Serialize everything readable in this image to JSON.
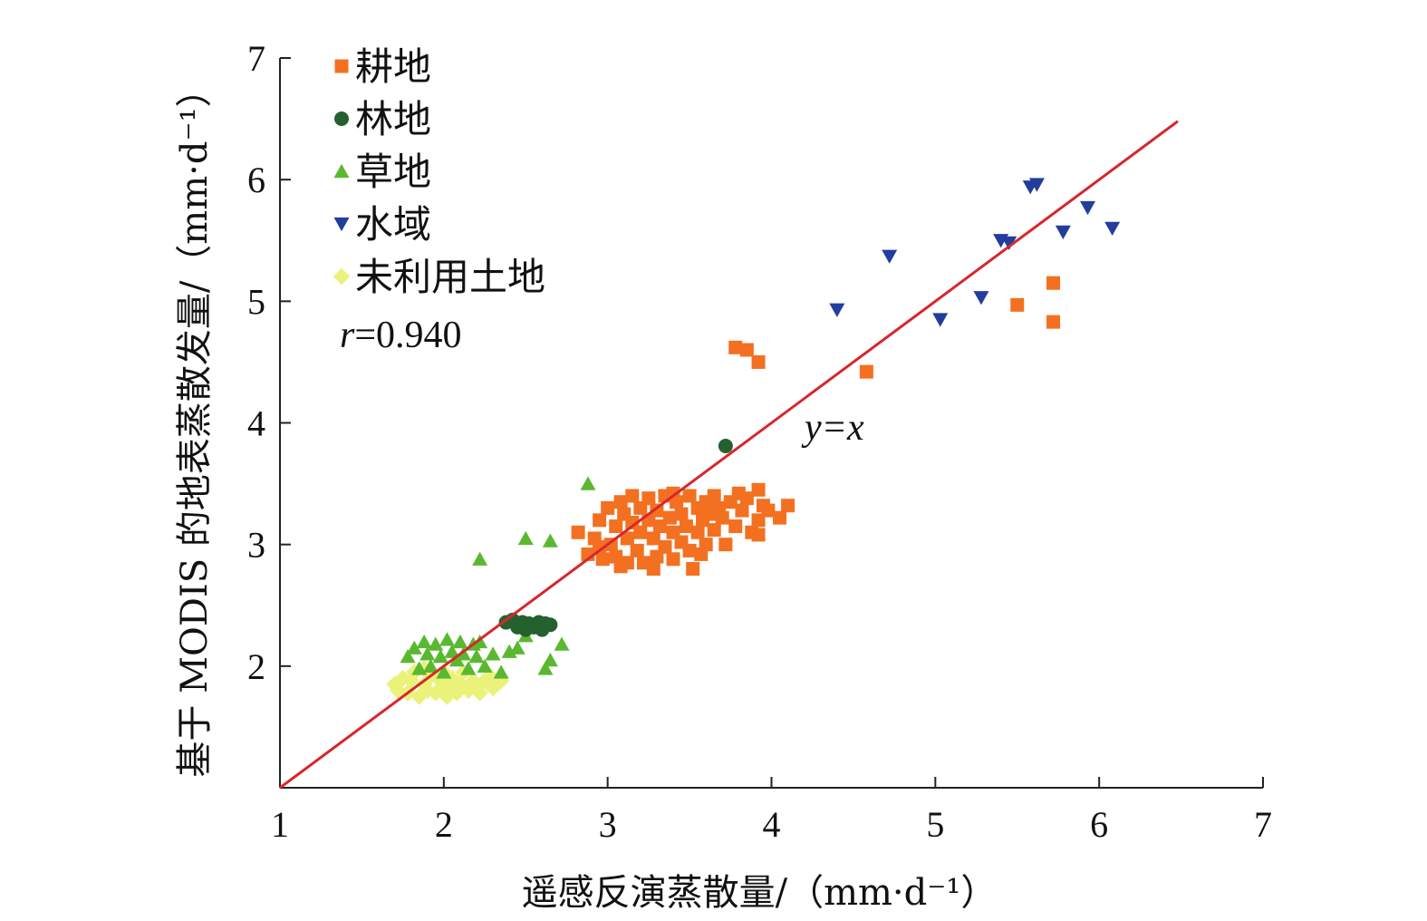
{
  "chart_data": {
    "type": "scatter",
    "xlabel": "遥感反演蒸散量/（mm·d⁻¹）",
    "ylabel": "基于 MODIS 的地表蒸散发量/（mm·d⁻¹）",
    "xlim": [
      1,
      7
    ],
    "ylim": [
      1,
      7
    ],
    "xticks": [
      1,
      2,
      3,
      4,
      5,
      6,
      7
    ],
    "yticks": [
      2,
      3,
      4,
      5,
      6,
      7
    ],
    "legend_position": "top-left",
    "annotation_r": "r=0.940",
    "line_label": "y=x",
    "reference_line": {
      "slope": 1,
      "intercept": 0,
      "color": "#d7262d",
      "x_range": [
        1,
        6.48
      ]
    },
    "series": [
      {
        "name": "耕地",
        "marker": "square",
        "color": "#f37021",
        "points": [
          [
            2.82,
            3.1
          ],
          [
            2.88,
            2.92
          ],
          [
            2.92,
            3.05
          ],
          [
            2.95,
            3.2
          ],
          [
            2.97,
            2.88
          ],
          [
            3.0,
            3.3
          ],
          [
            3.02,
            3.0
          ],
          [
            3.05,
            2.9
          ],
          [
            3.05,
            3.15
          ],
          [
            3.08,
            3.35
          ],
          [
            3.1,
            3.25
          ],
          [
            3.12,
            2.85
          ],
          [
            3.12,
            3.05
          ],
          [
            3.15,
            3.4
          ],
          [
            3.15,
            3.18
          ],
          [
            3.18,
            2.95
          ],
          [
            3.2,
            3.3
          ],
          [
            3.2,
            3.1
          ],
          [
            3.22,
            2.85
          ],
          [
            3.25,
            3.2
          ],
          [
            3.25,
            3.38
          ],
          [
            3.28,
            3.05
          ],
          [
            3.3,
            2.9
          ],
          [
            3.3,
            3.28
          ],
          [
            3.32,
            3.15
          ],
          [
            3.35,
            3.4
          ],
          [
            3.35,
            2.98
          ],
          [
            3.38,
            3.22
          ],
          [
            3.4,
            3.1
          ],
          [
            3.4,
            2.88
          ],
          [
            3.42,
            3.35
          ],
          [
            3.45,
            3.02
          ],
          [
            3.45,
            3.25
          ],
          [
            3.48,
            3.15
          ],
          [
            3.5,
            3.4
          ],
          [
            3.5,
            2.95
          ],
          [
            3.52,
            2.8
          ],
          [
            3.55,
            3.3
          ],
          [
            3.55,
            3.1
          ],
          [
            3.58,
            3.2
          ],
          [
            3.6,
            3.35
          ],
          [
            3.6,
            3.0
          ],
          [
            3.62,
            3.25
          ],
          [
            3.65,
            3.4
          ],
          [
            3.65,
            3.12
          ],
          [
            3.68,
            3.3
          ],
          [
            3.7,
            3.22
          ],
          [
            3.72,
            3.0
          ],
          [
            3.75,
            3.35
          ],
          [
            3.78,
            3.15
          ],
          [
            3.8,
            3.42
          ],
          [
            3.82,
            3.28
          ],
          [
            3.85,
            3.38
          ],
          [
            3.88,
            3.1
          ],
          [
            3.92,
            3.45
          ],
          [
            3.92,
            3.2
          ],
          [
            3.95,
            3.32
          ],
          [
            3.98,
            3.28
          ],
          [
            4.05,
            3.22
          ],
          [
            4.1,
            3.32
          ],
          [
            3.92,
            3.08
          ],
          [
            2.95,
            2.98
          ],
          [
            3.08,
            2.82
          ],
          [
            3.28,
            2.8
          ],
          [
            3.4,
            3.42
          ],
          [
            3.57,
            2.92
          ],
          [
            3.78,
            4.62
          ],
          [
            3.85,
            4.6
          ],
          [
            3.92,
            4.5
          ],
          [
            4.58,
            4.42
          ],
          [
            5.5,
            4.97
          ],
          [
            5.72,
            5.15
          ],
          [
            5.72,
            4.83
          ]
        ]
      },
      {
        "name": "林地",
        "marker": "circle",
        "color": "#24612e",
        "points": [
          [
            2.38,
            2.36
          ],
          [
            2.42,
            2.38
          ],
          [
            2.45,
            2.32
          ],
          [
            2.48,
            2.36
          ],
          [
            2.5,
            2.3
          ],
          [
            2.52,
            2.35
          ],
          [
            2.55,
            2.32
          ],
          [
            2.58,
            2.36
          ],
          [
            2.6,
            2.3
          ],
          [
            2.62,
            2.35
          ],
          [
            2.65,
            2.34
          ],
          [
            3.72,
            3.81
          ]
        ]
      },
      {
        "name": "草地",
        "marker": "triangle",
        "color": "#5ab830",
        "points": [
          [
            1.78,
            2.08
          ],
          [
            1.82,
            2.15
          ],
          [
            1.85,
            1.98
          ],
          [
            1.88,
            2.2
          ],
          [
            1.9,
            2.1
          ],
          [
            1.92,
            2.0
          ],
          [
            1.95,
            2.18
          ],
          [
            1.98,
            2.08
          ],
          [
            2.0,
            1.95
          ],
          [
            2.02,
            2.22
          ],
          [
            2.05,
            2.12
          ],
          [
            2.08,
            2.05
          ],
          [
            2.1,
            2.2
          ],
          [
            2.12,
            2.1
          ],
          [
            2.15,
            1.98
          ],
          [
            2.18,
            2.18
          ],
          [
            2.2,
            2.08
          ],
          [
            2.22,
            2.2
          ],
          [
            2.25,
            2.0
          ],
          [
            2.3,
            2.1
          ],
          [
            2.35,
            1.95
          ],
          [
            2.4,
            2.12
          ],
          [
            2.45,
            2.15
          ],
          [
            2.5,
            2.25
          ],
          [
            2.62,
            1.98
          ],
          [
            2.65,
            2.05
          ],
          [
            2.72,
            2.18
          ],
          [
            2.22,
            2.88
          ],
          [
            2.5,
            3.05
          ],
          [
            2.65,
            3.03
          ],
          [
            2.88,
            3.5
          ]
        ]
      },
      {
        "name": "水域",
        "marker": "triangle-down",
        "color": "#233d9c",
        "points": [
          [
            4.4,
            4.93
          ],
          [
            4.72,
            5.37
          ],
          [
            5.03,
            4.85
          ],
          [
            5.28,
            5.03
          ],
          [
            5.4,
            5.5
          ],
          [
            5.45,
            5.48
          ],
          [
            5.58,
            5.94
          ],
          [
            5.62,
            5.96
          ],
          [
            5.78,
            5.57
          ],
          [
            5.93,
            5.77
          ],
          [
            6.08,
            5.6
          ]
        ]
      },
      {
        "name": "未利用土地",
        "marker": "diamond",
        "color": "#eaf27a",
        "points": [
          [
            1.7,
            1.85
          ],
          [
            1.72,
            1.8
          ],
          [
            1.75,
            1.9
          ],
          [
            1.78,
            1.78
          ],
          [
            1.8,
            1.88
          ],
          [
            1.82,
            1.95
          ],
          [
            1.85,
            1.75
          ],
          [
            1.88,
            1.85
          ],
          [
            1.9,
            1.8
          ],
          [
            1.92,
            1.92
          ],
          [
            1.95,
            1.78
          ],
          [
            1.98,
            1.88
          ],
          [
            2.0,
            1.95
          ],
          [
            2.02,
            1.82
          ],
          [
            2.05,
            1.9
          ],
          [
            2.08,
            1.78
          ],
          [
            2.1,
            1.85
          ],
          [
            2.12,
            1.95
          ],
          [
            2.15,
            1.8
          ],
          [
            2.18,
            1.88
          ],
          [
            2.2,
            1.82
          ],
          [
            2.22,
            1.78
          ],
          [
            2.25,
            1.88
          ],
          [
            2.3,
            1.82
          ],
          [
            2.35,
            1.88
          ],
          [
            1.88,
            1.98
          ],
          [
            2.02,
            1.75
          ],
          [
            2.28,
            1.92
          ]
        ]
      }
    ]
  }
}
